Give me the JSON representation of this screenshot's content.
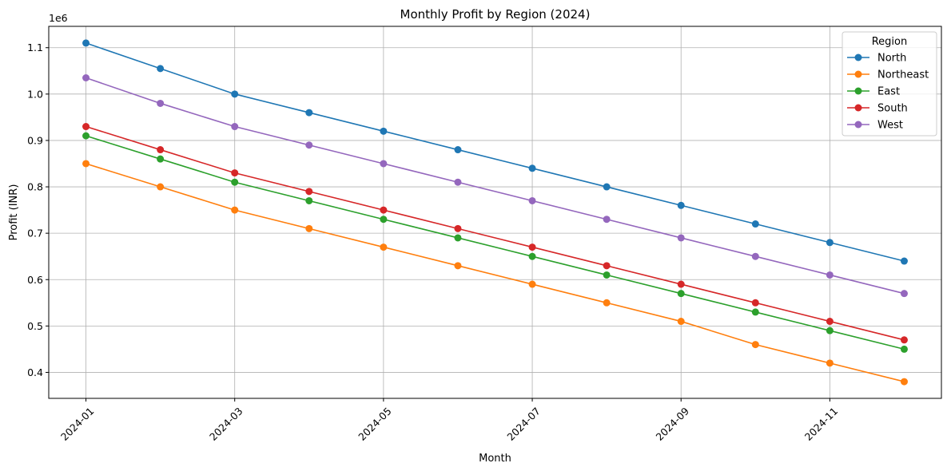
{
  "chart_data": {
    "type": "line",
    "title": "Monthly Profit by Region (2024)",
    "xlabel": "Month",
    "ylabel": "Profit (INR)",
    "y_offset_label": "1e6",
    "x": [
      "2024-01",
      "2024-02",
      "2024-03",
      "2024-04",
      "2024-05",
      "2024-06",
      "2024-07",
      "2024-08",
      "2024-09",
      "2024-10",
      "2024-11",
      "2024-12"
    ],
    "x_tick_labels": [
      "2024-01",
      "2024-03",
      "2024-05",
      "2024-07",
      "2024-09",
      "2024-11"
    ],
    "y_ticks": [
      0.4,
      0.5,
      0.6,
      0.7,
      0.8,
      0.9,
      1.0,
      1.1
    ],
    "y_tick_labels": [
      "0.4",
      "0.5",
      "0.6",
      "0.7",
      "0.8",
      "0.9",
      "1.0",
      "1.1"
    ],
    "ylim": [
      344000,
      1146000
    ],
    "grid": true,
    "legend": {
      "title": "Region",
      "placement": "top-right"
    },
    "series": [
      {
        "name": "North",
        "color": "#1f77b4",
        "values": [
          1110000,
          1055000,
          1000000,
          960000,
          920000,
          880000,
          840000,
          800000,
          760000,
          720000,
          680000,
          640000
        ]
      },
      {
        "name": "Northeast",
        "color": "#ff7f0e",
        "values": [
          850000,
          800000,
          750000,
          710000,
          670000,
          630000,
          590000,
          550000,
          510000,
          460000,
          420000,
          380000
        ]
      },
      {
        "name": "East",
        "color": "#2ca02c",
        "values": [
          910000,
          860000,
          810000,
          770000,
          730000,
          690000,
          650000,
          610000,
          570000,
          530000,
          490000,
          450000
        ]
      },
      {
        "name": "South",
        "color": "#d62728",
        "values": [
          930000,
          880000,
          830000,
          790000,
          750000,
          710000,
          670000,
          630000,
          590000,
          550000,
          510000,
          470000
        ]
      },
      {
        "name": "West",
        "color": "#9467bd",
        "values": [
          1035000,
          980000,
          930000,
          890000,
          850000,
          810000,
          770000,
          730000,
          690000,
          650000,
          610000,
          570000
        ]
      }
    ]
  }
}
